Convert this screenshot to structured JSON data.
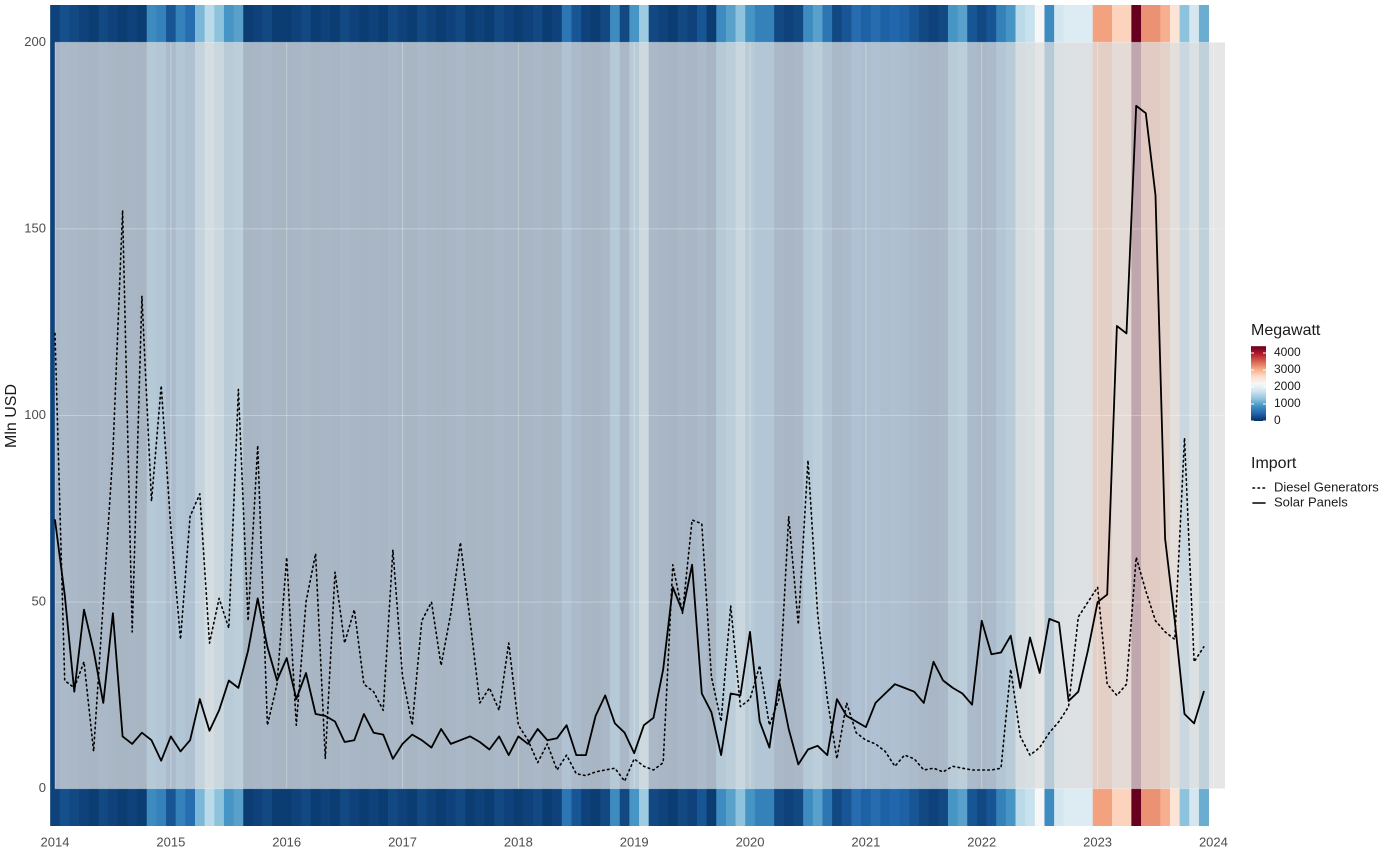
{
  "chart_data": {
    "type": "line",
    "y_label": "Mln USD",
    "x": [
      "2014-01",
      "2014-02",
      "2014-03",
      "2014-04",
      "2014-05",
      "2014-06",
      "2014-07",
      "2014-08",
      "2014-09",
      "2014-10",
      "2014-11",
      "2014-12",
      "2015-01",
      "2015-02",
      "2015-03",
      "2015-04",
      "2015-05",
      "2015-06",
      "2015-07",
      "2015-08",
      "2015-09",
      "2015-10",
      "2015-11",
      "2015-12",
      "2016-01",
      "2016-02",
      "2016-03",
      "2016-04",
      "2016-05",
      "2016-06",
      "2016-07",
      "2016-08",
      "2016-09",
      "2016-10",
      "2016-11",
      "2016-12",
      "2017-01",
      "2017-02",
      "2017-03",
      "2017-04",
      "2017-05",
      "2017-06",
      "2017-07",
      "2017-08",
      "2017-09",
      "2017-10",
      "2017-11",
      "2017-12",
      "2018-01",
      "2018-02",
      "2018-03",
      "2018-04",
      "2018-05",
      "2018-06",
      "2018-07",
      "2018-08",
      "2018-09",
      "2018-10",
      "2018-11",
      "2018-12",
      "2019-01",
      "2019-02",
      "2019-03",
      "2019-04",
      "2019-05",
      "2019-06",
      "2019-07",
      "2019-08",
      "2019-09",
      "2019-10",
      "2019-11",
      "2019-12",
      "2020-01",
      "2020-02",
      "2020-03",
      "2020-04",
      "2020-05",
      "2020-06",
      "2020-07",
      "2020-08",
      "2020-09",
      "2020-10",
      "2020-11",
      "2020-12",
      "2021-01",
      "2021-02",
      "2021-03",
      "2021-04",
      "2021-05",
      "2021-06",
      "2021-07",
      "2021-08",
      "2021-09",
      "2021-10",
      "2021-11",
      "2021-12",
      "2022-01",
      "2022-02",
      "2022-03",
      "2022-04",
      "2022-05",
      "2022-06",
      "2022-07",
      "2022-08",
      "2022-09",
      "2022-10",
      "2022-11",
      "2022-12",
      "2023-01",
      "2023-02",
      "2023-03",
      "2023-04",
      "2023-05",
      "2023-06",
      "2023-07",
      "2023-08",
      "2023-09",
      "2023-10",
      "2023-11",
      "2023-12"
    ],
    "xlim": [
      2014,
      2024.1
    ],
    "xticks": [
      2014,
      2015,
      2016,
      2017,
      2018,
      2019,
      2020,
      2021,
      2022,
      2023,
      2024
    ],
    "ylim": [
      -10,
      210
    ],
    "yticks": [
      0,
      50,
      100,
      150,
      200
    ],
    "grid": true,
    "legend": "right",
    "legend_title": "Import",
    "series": [
      {
        "name": "Diesel Generators",
        "color": "#000000",
        "dash": "dotted",
        "values": [
          122,
          29,
          27,
          34,
          10,
          50,
          90,
          155,
          42,
          132,
          77,
          108,
          70,
          40,
          73,
          79,
          39,
          51,
          43,
          107,
          45,
          92,
          17,
          28,
          62,
          17,
          50,
          63,
          8,
          58,
          39,
          48,
          28,
          26,
          21,
          64,
          30,
          17,
          45,
          50,
          33,
          47,
          66,
          45,
          23,
          27,
          21,
          39,
          17,
          13,
          7,
          12,
          5,
          9,
          4,
          3.5,
          4.5,
          5,
          5.5,
          2,
          8,
          6,
          5,
          7,
          60,
          47,
          72,
          71,
          30,
          18,
          49,
          22,
          24,
          33,
          17,
          24,
          73,
          44,
          88,
          47,
          24,
          8,
          23,
          15,
          13,
          12,
          10,
          6,
          9,
          8,
          5,
          5.5,
          4.5,
          6,
          5.5,
          5,
          5,
          5,
          5.5,
          32,
          14,
          9,
          11,
          15,
          18,
          22,
          46,
          50,
          54,
          28,
          25,
          28,
          62,
          53,
          45,
          42,
          40,
          94,
          34,
          38
        ]
      },
      {
        "name": "Solar Panels",
        "color": "#000000",
        "dash": "solid",
        "values": [
          72,
          52,
          26,
          48,
          37,
          23,
          47,
          14,
          12,
          15,
          13,
          7.5,
          14,
          10,
          13,
          24,
          15.5,
          21,
          29,
          27,
          37,
          51,
          38,
          29,
          35,
          24,
          31,
          20,
          19.5,
          18,
          12.5,
          13,
          20,
          15,
          14.5,
          8,
          12,
          14.5,
          13,
          11,
          16,
          12,
          13,
          14,
          12.5,
          10.5,
          14,
          9,
          14,
          12,
          16,
          13,
          13.5,
          17,
          9,
          9,
          19.5,
          25,
          17.5,
          15,
          9.5,
          17,
          19,
          32,
          54,
          47.5,
          60,
          25.5,
          20.5,
          9,
          25.5,
          25,
          42,
          18,
          11,
          29,
          16,
          6.5,
          10.5,
          11.5,
          9,
          24,
          19.5,
          18,
          16.5,
          23,
          25.5,
          28,
          27,
          26,
          23,
          34,
          29,
          27,
          25.5,
          22.5,
          45,
          36,
          36.5,
          41,
          27,
          40.5,
          31,
          45.5,
          44.5,
          23.5,
          26,
          37,
          50,
          52,
          124,
          122,
          183,
          181,
          159,
          67,
          45,
          20,
          17.5,
          26
        ]
      }
    ],
    "heat": {
      "title": "Megawatt",
      "limits": [
        0,
        4400
      ],
      "ticks": [
        0,
        1000,
        2000,
        3000,
        4000
      ],
      "colors": [
        "#053061",
        "#2166ac",
        "#4393c3",
        "#92c5de",
        "#d1e5f0",
        "#f7f7f7",
        "#fddbc7",
        "#f4a582",
        "#d6604d",
        "#b2182b",
        "#67001f"
      ],
      "values": [
        150,
        250,
        200,
        150,
        100,
        200,
        150,
        100,
        150,
        100,
        800,
        700,
        300,
        700,
        500,
        1200,
        1600,
        1300,
        900,
        1000,
        100,
        150,
        200,
        100,
        100,
        150,
        200,
        100,
        150,
        100,
        200,
        150,
        100,
        150,
        100,
        200,
        150,
        100,
        200,
        150,
        100,
        150,
        200,
        100,
        150,
        100,
        200,
        150,
        100,
        150,
        200,
        100,
        150,
        600,
        300,
        150,
        100,
        200,
        800,
        200,
        900,
        1400,
        200,
        150,
        100,
        200,
        150,
        300,
        100,
        800,
        1000,
        1300,
        900,
        700,
        700,
        200,
        150,
        200,
        800,
        1000,
        600,
        200,
        300,
        500,
        400,
        500,
        400,
        450,
        400,
        300,
        200,
        150,
        200,
        900,
        1000,
        300,
        200,
        300,
        700,
        900,
        1600,
        1700,
        2200,
        800,
        1800,
        1900,
        1900,
        1900,
        3100,
        3100,
        2700,
        2700,
        4400,
        3200,
        3200,
        3000,
        2500,
        1300,
        1800,
        1100
      ]
    }
  }
}
